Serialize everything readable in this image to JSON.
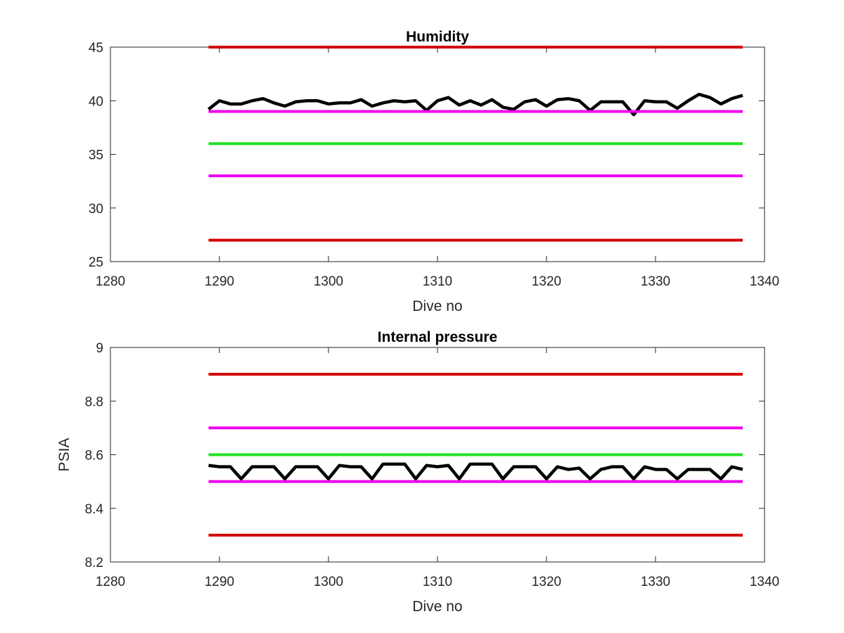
{
  "chart_data": [
    {
      "type": "line",
      "title": "Humidity",
      "xlabel": "Dive no",
      "ylabel": "",
      "xlim": [
        1280,
        1340
      ],
      "ylim": [
        25,
        45
      ],
      "xticks": [
        "1280",
        "1290",
        "1300",
        "1310",
        "1320",
        "1330",
        "1340"
      ],
      "yticks": [
        "25",
        "30",
        "35",
        "40",
        "45"
      ],
      "grid": false,
      "series": [
        {
          "color": "#000000",
          "x": [
            1289,
            1290,
            1291,
            1292,
            1293,
            1294,
            1295,
            1296,
            1297,
            1298,
            1299,
            1300,
            1301,
            1302,
            1303,
            1304,
            1305,
            1306,
            1307,
            1308,
            1309,
            1310,
            1311,
            1312,
            1313,
            1314,
            1315,
            1316,
            1317,
            1318,
            1319,
            1320,
            1321,
            1322,
            1323,
            1324,
            1325,
            1326,
            1327,
            1328,
            1329,
            1330,
            1331,
            1332,
            1333,
            1334,
            1335,
            1336,
            1337,
            1338
          ],
          "values": [
            39.2,
            40.0,
            39.7,
            39.7,
            40.0,
            40.2,
            39.8,
            39.5,
            39.9,
            40.0,
            40.0,
            39.7,
            39.8,
            39.8,
            40.1,
            39.5,
            39.8,
            40.0,
            39.9,
            40.0,
            39.1,
            40.0,
            40.3,
            39.6,
            40.0,
            39.6,
            40.1,
            39.4,
            39.2,
            39.9,
            40.1,
            39.5,
            40.1,
            40.2,
            40.0,
            39.1,
            39.9,
            39.9,
            39.9,
            38.7,
            40.0,
            39.9,
            39.9,
            39.3,
            40.0,
            40.6,
            40.3,
            39.7,
            40.2,
            40.5
          ]
        },
        {
          "color": "#d40000",
          "x": [
            1289,
            1338
          ],
          "values": [
            45,
            45
          ]
        },
        {
          "color": "#ee00ee",
          "x": [
            1289,
            1338
          ],
          "values": [
            39,
            39
          ]
        },
        {
          "color": "#22e022",
          "x": [
            1289,
            1338
          ],
          "values": [
            36,
            36
          ]
        },
        {
          "color": "#ee00ee",
          "x": [
            1289,
            1338
          ],
          "values": [
            33,
            33
          ]
        },
        {
          "color": "#d40000",
          "x": [
            1289,
            1338
          ],
          "values": [
            27,
            27
          ]
        }
      ]
    },
    {
      "type": "line",
      "title": "Internal pressure",
      "xlabel": "Dive no",
      "ylabel": "PSIA",
      "xlim": [
        1280,
        1340
      ],
      "ylim": [
        8.2,
        9.0
      ],
      "xticks": [
        "1280",
        "1290",
        "1300",
        "1310",
        "1320",
        "1330",
        "1340"
      ],
      "yticks": [
        "8.2",
        "8.4",
        "8.6",
        "8.8",
        "9"
      ],
      "grid": false,
      "series": [
        {
          "color": "#000000",
          "x": [
            1289,
            1290,
            1291,
            1292,
            1293,
            1294,
            1295,
            1296,
            1297,
            1298,
            1299,
            1300,
            1301,
            1302,
            1303,
            1304,
            1305,
            1306,
            1307,
            1308,
            1309,
            1310,
            1311,
            1312,
            1313,
            1314,
            1315,
            1316,
            1317,
            1318,
            1319,
            1320,
            1321,
            1322,
            1323,
            1324,
            1325,
            1326,
            1327,
            1328,
            1329,
            1330,
            1331,
            1332,
            1333,
            1334,
            1335,
            1336,
            1337,
            1338
          ],
          "values": [
            8.56,
            8.555,
            8.555,
            8.51,
            8.555,
            8.555,
            8.555,
            8.51,
            8.555,
            8.555,
            8.555,
            8.51,
            8.56,
            8.555,
            8.555,
            8.51,
            8.565,
            8.565,
            8.565,
            8.51,
            8.56,
            8.555,
            8.56,
            8.51,
            8.565,
            8.565,
            8.565,
            8.51,
            8.555,
            8.555,
            8.555,
            8.51,
            8.555,
            8.545,
            8.55,
            8.51,
            8.545,
            8.555,
            8.555,
            8.51,
            8.555,
            8.545,
            8.545,
            8.51,
            8.545,
            8.545,
            8.545,
            8.51,
            8.555,
            8.545
          ]
        },
        {
          "color": "#d40000",
          "x": [
            1289,
            1338
          ],
          "values": [
            8.9,
            8.9
          ]
        },
        {
          "color": "#ee00ee",
          "x": [
            1289,
            1338
          ],
          "values": [
            8.7,
            8.7
          ]
        },
        {
          "color": "#22e022",
          "x": [
            1289,
            1338
          ],
          "values": [
            8.6,
            8.6
          ]
        },
        {
          "color": "#ee00ee",
          "x": [
            1289,
            1338
          ],
          "values": [
            8.5,
            8.5
          ]
        },
        {
          "color": "#d40000",
          "x": [
            1289,
            1338
          ],
          "values": [
            8.3,
            8.3
          ]
        }
      ]
    }
  ]
}
